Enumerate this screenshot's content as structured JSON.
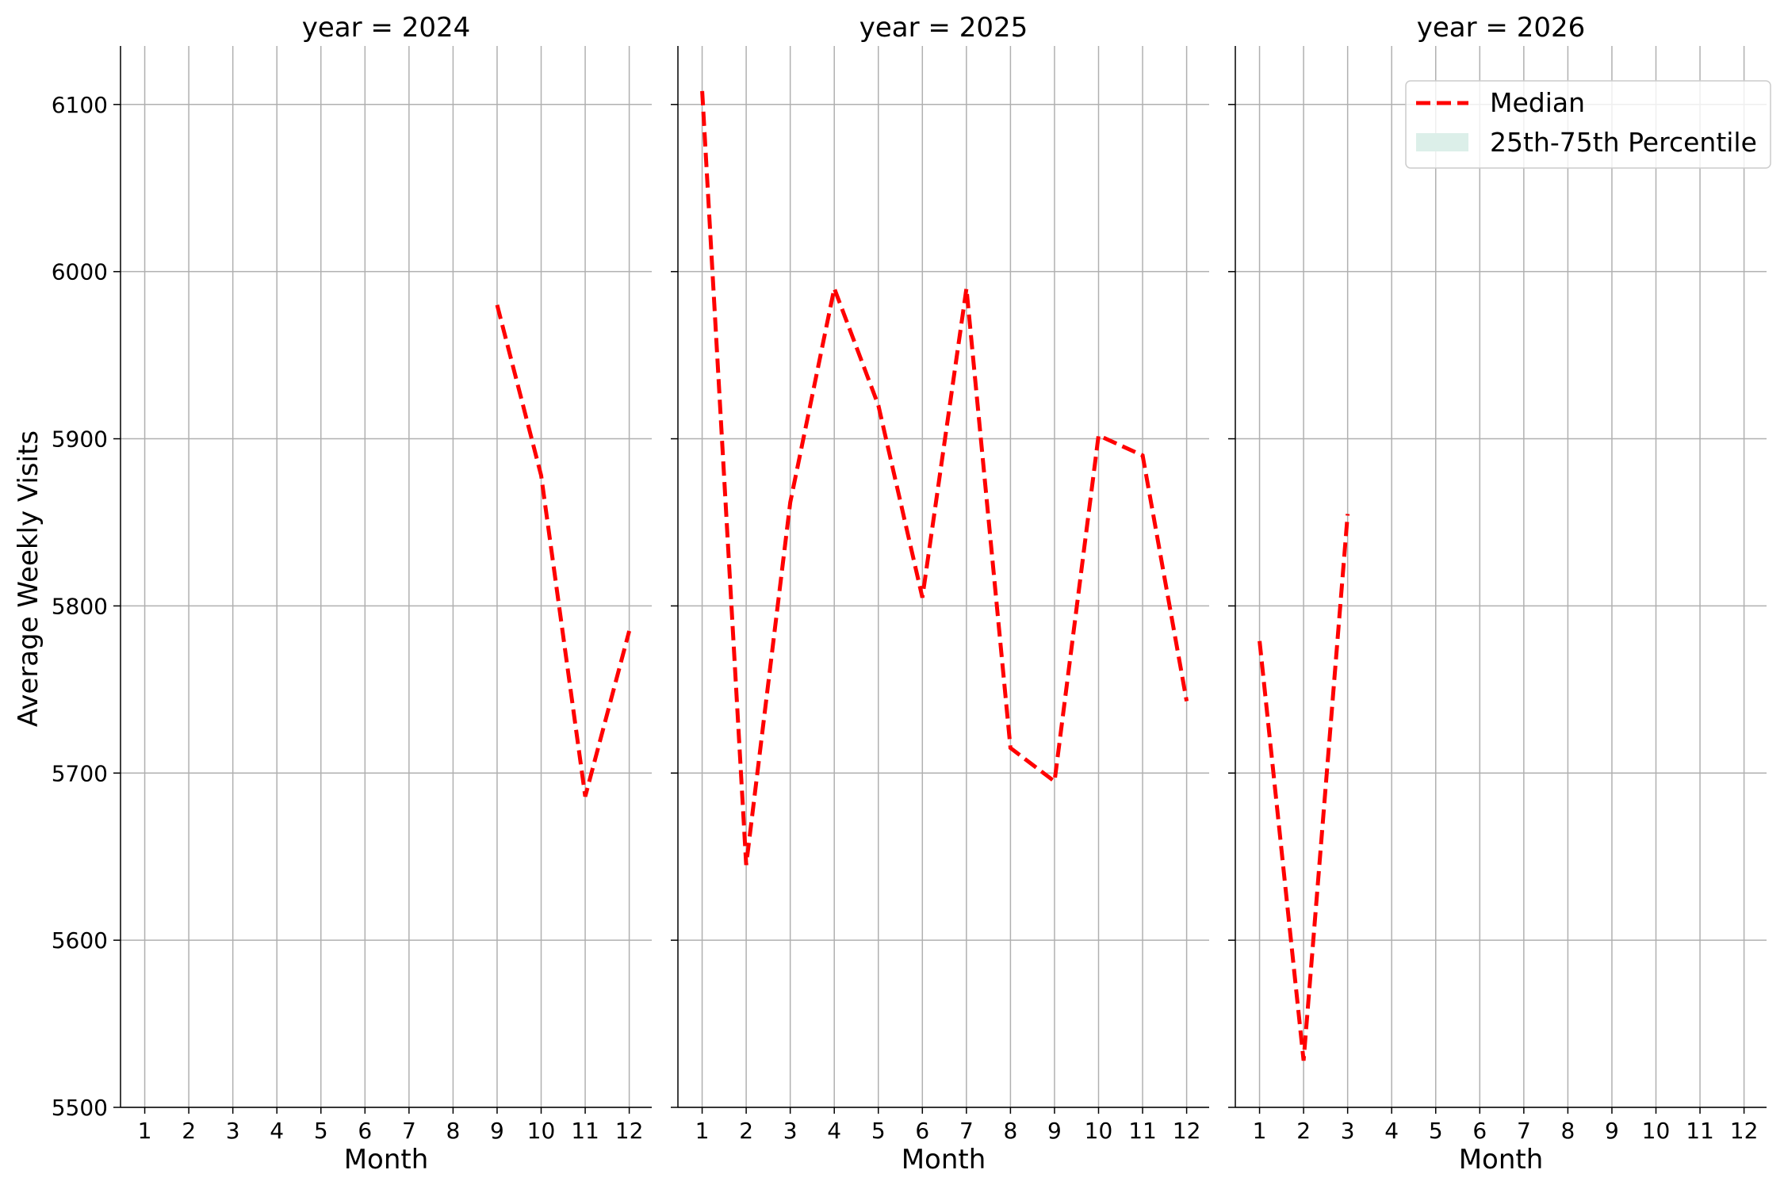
{
  "chart_data": {
    "type": "line",
    "ylabel": "Average Weekly Visits",
    "ylim": [
      5500,
      6135
    ],
    "yticks": [
      5500,
      5600,
      5700,
      5800,
      5900,
      6000,
      6100
    ],
    "xlim": [
      0.45,
      12.55
    ],
    "grid": true,
    "legend": {
      "placement": "top-right",
      "entries": [
        {
          "label": "Median",
          "style": "dashed-line",
          "color": "#ff0000"
        },
        {
          "label": "25th-75th Percentile",
          "style": "filled-band",
          "color": "#dcefe9"
        }
      ]
    },
    "colors": {
      "median": "#ff0000",
      "band": "#dcefe9",
      "grid": "#b0b0b0"
    },
    "panels": [
      {
        "title": "year = 2024",
        "xlabel": "Month",
        "x_ticks": [
          1,
          2,
          3,
          4,
          5,
          6,
          7,
          8,
          9,
          10,
          11,
          12
        ],
        "series": [
          {
            "name": "Median",
            "x": [
              9,
              10,
              11,
              12
            ],
            "y": [
              5980,
              5878,
              5686,
              5785
            ]
          }
        ]
      },
      {
        "title": "year = 2025",
        "xlabel": "Month",
        "x_ticks": [
          1,
          2,
          3,
          4,
          5,
          6,
          7,
          8,
          9,
          10,
          11,
          12
        ],
        "series": [
          {
            "name": "Median",
            "x": [
              1,
              2,
              3,
              4,
              5,
              6,
              7,
              8,
              9,
              10,
              11,
              12
            ],
            "y": [
              6108,
              5645,
              5862,
              5990,
              5920,
              5805,
              5990,
              5715,
              5695,
              5902,
              5890,
              5743
            ]
          }
        ]
      },
      {
        "title": "year = 2026",
        "xlabel": "Month",
        "x_ticks": [
          1,
          2,
          3,
          4,
          5,
          6,
          7,
          8,
          9,
          10,
          11,
          12
        ],
        "series": [
          {
            "name": "Median",
            "x": [
              1,
              2,
              3
            ],
            "y": [
              5779,
              5528,
              5855
            ]
          }
        ]
      }
    ]
  }
}
